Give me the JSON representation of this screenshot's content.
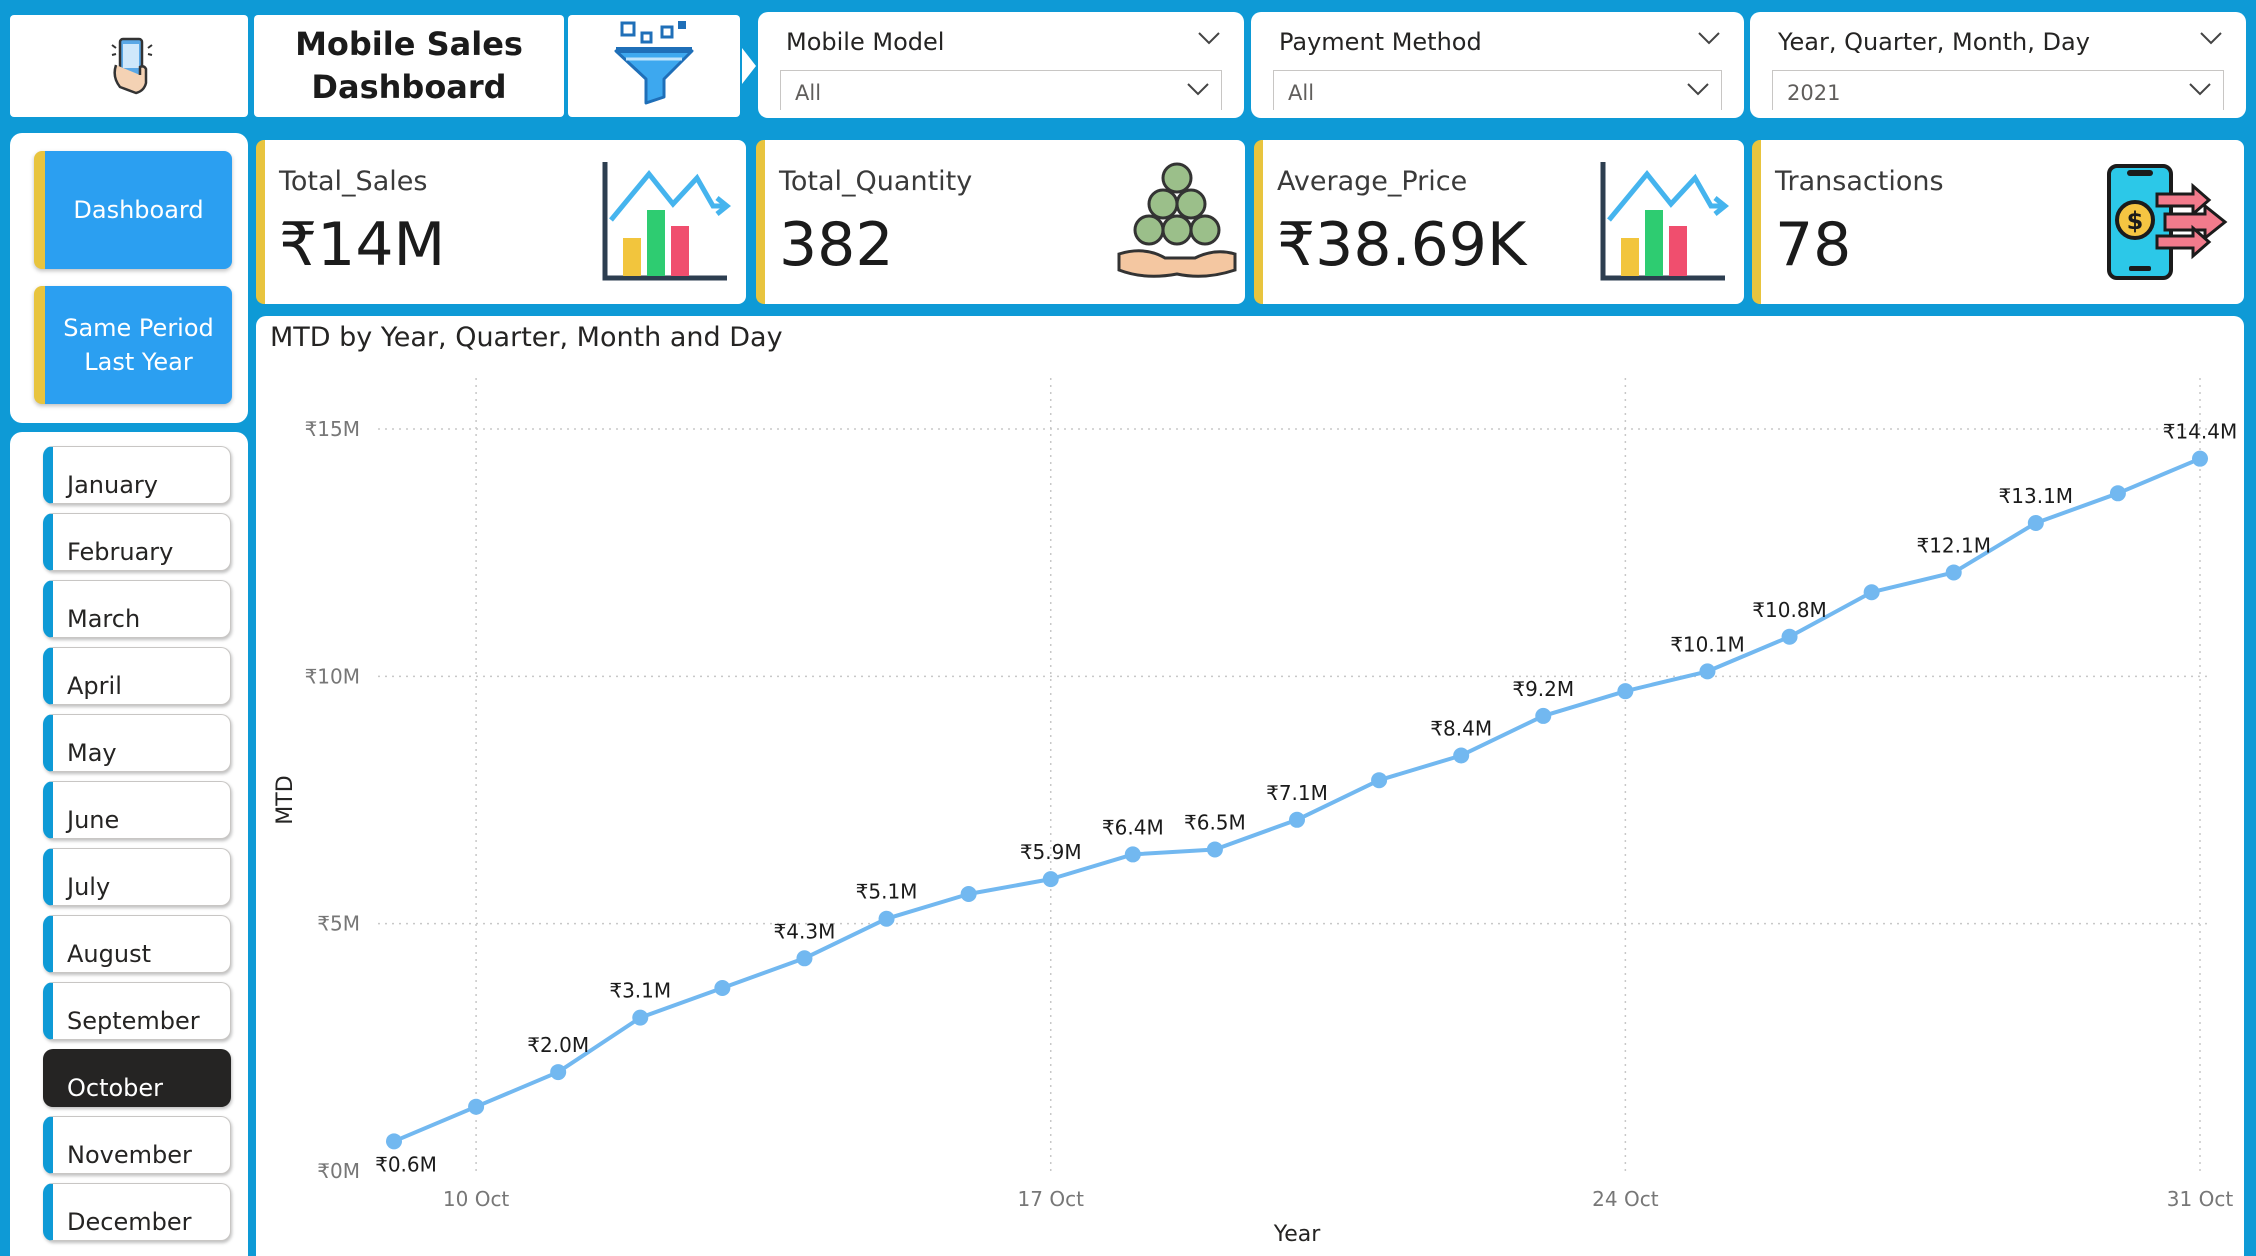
{
  "header": {
    "title": "Mobile Sales\nDashboard",
    "logo_icon": "mobile-hand-icon",
    "filter_icon": "funnel-filter-icon"
  },
  "slicers": {
    "mobile_model": {
      "label": "Mobile Model",
      "value": "All"
    },
    "payment_method": {
      "label": "Payment Method",
      "value": "All"
    },
    "date": {
      "label": "Year, Quarter, Month, Day",
      "value": "2021"
    }
  },
  "nav": {
    "dashboard": "Dashboard",
    "same_period": "Same Period\nLast Year"
  },
  "months": {
    "items": [
      "January",
      "February",
      "March",
      "April",
      "May",
      "June",
      "July",
      "August",
      "September",
      "October",
      "November",
      "December"
    ],
    "selected": "October"
  },
  "kpis": {
    "sales": {
      "label": "Total_Sales",
      "value": "₹14M",
      "icon": "bar-chart-trend-icon"
    },
    "quantity": {
      "label": "Total_Quantity",
      "value": "382",
      "icon": "coins-hand-icon"
    },
    "price": {
      "label": "Average_Price",
      "value": "₹38.69K",
      "icon": "bar-chart-trend-icon"
    },
    "transactions": {
      "label": "Transactions",
      "value": "78",
      "icon": "phone-payment-icon"
    }
  },
  "colors": {
    "background": "#0e9ad6",
    "accent": "#e8c43e",
    "button": "#2b9ff1",
    "line": "#72b8f0"
  },
  "chart_data": {
    "type": "line",
    "title": "MTD by Year, Quarter, Month and Day",
    "xlabel": "Year",
    "ylabel": "MTD",
    "x": [
      "2021-10-09",
      "2021-10-10",
      "2021-10-11",
      "2021-10-12",
      "2021-10-13",
      "2021-10-14",
      "2021-10-15",
      "2021-10-16",
      "2021-10-17",
      "2021-10-18",
      "2021-10-19",
      "2021-10-20",
      "2021-10-21",
      "2021-10-22",
      "2021-10-23",
      "2021-10-24",
      "2021-10-25",
      "2021-10-26",
      "2021-10-27",
      "2021-10-28",
      "2021-10-29",
      "2021-10-30",
      "2021-10-31"
    ],
    "values": [
      0.6,
      1.3,
      2.0,
      3.1,
      3.7,
      4.3,
      5.1,
      5.6,
      5.9,
      6.4,
      6.5,
      7.1,
      7.9,
      8.4,
      9.2,
      9.7,
      10.1,
      10.8,
      11.7,
      12.1,
      13.1,
      13.7,
      14.4
    ],
    "data_labels": [
      {
        "x": "2021-10-09",
        "text": "₹0.6M"
      },
      {
        "x": "2021-10-11",
        "text": "₹2.0M"
      },
      {
        "x": "2021-10-12",
        "text": "₹3.1M"
      },
      {
        "x": "2021-10-14",
        "text": "₹4.3M"
      },
      {
        "x": "2021-10-15",
        "text": "₹5.1M"
      },
      {
        "x": "2021-10-17",
        "text": "₹5.9M"
      },
      {
        "x": "2021-10-18",
        "text": "₹6.4M"
      },
      {
        "x": "2021-10-19",
        "text": "₹6.5M"
      },
      {
        "x": "2021-10-20",
        "text": "₹7.1M"
      },
      {
        "x": "2021-10-22",
        "text": "₹8.4M"
      },
      {
        "x": "2021-10-23",
        "text": "₹9.2M"
      },
      {
        "x": "2021-10-25",
        "text": "₹10.1M"
      },
      {
        "x": "2021-10-26",
        "text": "₹10.8M"
      },
      {
        "x": "2021-10-28",
        "text": "₹12.1M"
      },
      {
        "x": "2021-10-29",
        "text": "₹13.1M"
      },
      {
        "x": "2021-10-31",
        "text": "₹14.4M"
      }
    ],
    "y_ticks": [
      {
        "value": 0,
        "label": "₹0M"
      },
      {
        "value": 5,
        "label": "₹5M"
      },
      {
        "value": 10,
        "label": "₹10M"
      },
      {
        "value": 15,
        "label": "₹15M"
      }
    ],
    "x_ticks": [
      {
        "x": "2021-10-10",
        "label": "10 Oct"
      },
      {
        "x": "2021-10-17",
        "label": "17 Oct"
      },
      {
        "x": "2021-10-24",
        "label": "24 Oct"
      },
      {
        "x": "2021-10-31",
        "label": "31 Oct"
      }
    ],
    "ylim": [
      0,
      15
    ],
    "xlim": [
      "2021-10-09",
      "2021-10-31"
    ],
    "grid": true,
    "legend": "none"
  }
}
